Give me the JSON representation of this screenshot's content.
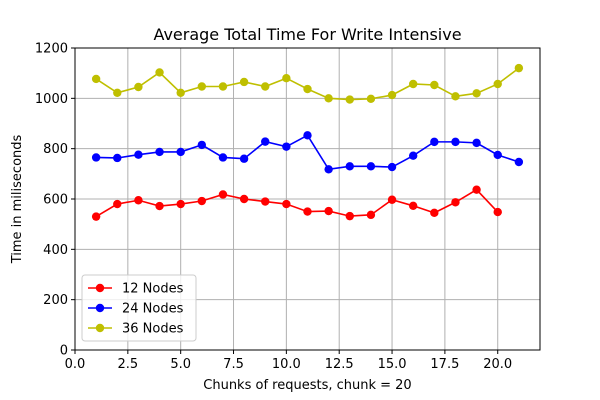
{
  "chart_data": {
    "type": "line",
    "title": "Average Total Time For Write Intensive",
    "xlabel": "Chunks of requests, chunk = 20",
    "ylabel": "Time in miliseconds",
    "xlim": [
      0,
      22
    ],
    "ylim": [
      0,
      1200
    ],
    "xticks": [
      "0.0",
      "2.5",
      "5.0",
      "7.5",
      "10.0",
      "12.5",
      "15.0",
      "17.5",
      "20.0"
    ],
    "yticks": [
      "0",
      "200",
      "400",
      "600",
      "800",
      "1000",
      "1200"
    ],
    "grid": true,
    "legend_position": "lower-left",
    "series": [
      {
        "name": "12 Nodes",
        "color": "#ff0000",
        "x": [
          1,
          2,
          3,
          4,
          5,
          6,
          7,
          8,
          9,
          10,
          11,
          12,
          13,
          14,
          15,
          16,
          17,
          18,
          19,
          20
        ],
        "values": [
          530,
          580,
          595,
          572,
          580,
          592,
          618,
          600,
          590,
          580,
          550,
          552,
          532,
          537,
          597,
          573,
          545,
          587,
          637,
          548
        ]
      },
      {
        "name": "24 Nodes",
        "color": "#0000ff",
        "x": [
          1,
          2,
          3,
          4,
          5,
          6,
          7,
          8,
          9,
          10,
          11,
          12,
          13,
          14,
          15,
          16,
          17,
          18,
          19,
          20,
          21
        ],
        "values": [
          765,
          763,
          776,
          787,
          787,
          815,
          765,
          760,
          828,
          808,
          853,
          718,
          730,
          730,
          727,
          772,
          827,
          827,
          823,
          775,
          747
        ]
      },
      {
        "name": "36 Nodes",
        "color": "#bfbf00",
        "x": [
          1,
          2,
          3,
          4,
          5,
          6,
          7,
          8,
          9,
          10,
          11,
          12,
          13,
          14,
          15,
          16,
          17,
          18,
          19,
          20,
          21
        ],
        "values": [
          1077,
          1022,
          1045,
          1103,
          1022,
          1047,
          1047,
          1065,
          1047,
          1080,
          1037,
          1000,
          995,
          998,
          1013,
          1057,
          1053,
          1008,
          1020,
          1057,
          1120
        ]
      }
    ]
  }
}
